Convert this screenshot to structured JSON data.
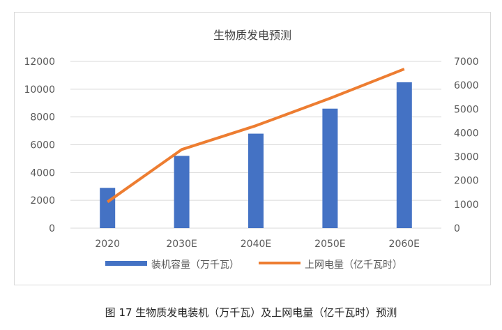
{
  "chart_data": {
    "type": "bar",
    "title": "生物质发电预测",
    "categories": [
      "2020",
      "2030E",
      "2040E",
      "2050E",
      "2060E"
    ],
    "series": [
      {
        "name": "装机容量（万千瓦）",
        "type": "bar",
        "axis": "left",
        "color": "#4472c4",
        "values": [
          2900,
          5200,
          6800,
          8600,
          10500
        ]
      },
      {
        "name": "上网电量（亿千瓦时）",
        "type": "line",
        "axis": "right",
        "color": "#ed7d31",
        "values": [
          1100,
          3300,
          4300,
          5450,
          6680
        ]
      }
    ],
    "ylim_left": [
      0,
      12000
    ],
    "yticks_left": [
      "0",
      "2000",
      "4000",
      "6000",
      "8000",
      "10000",
      "12000"
    ],
    "ylim_right": [
      0,
      7000
    ],
    "yticks_right": [
      "0",
      "1000",
      "2000",
      "3000",
      "4000",
      "5000",
      "6000",
      "7000"
    ],
    "grid": true,
    "legend": "bottom"
  },
  "caption": "图 17  生物质发电装机（万千瓦）及上网电量（亿千瓦时）预测"
}
